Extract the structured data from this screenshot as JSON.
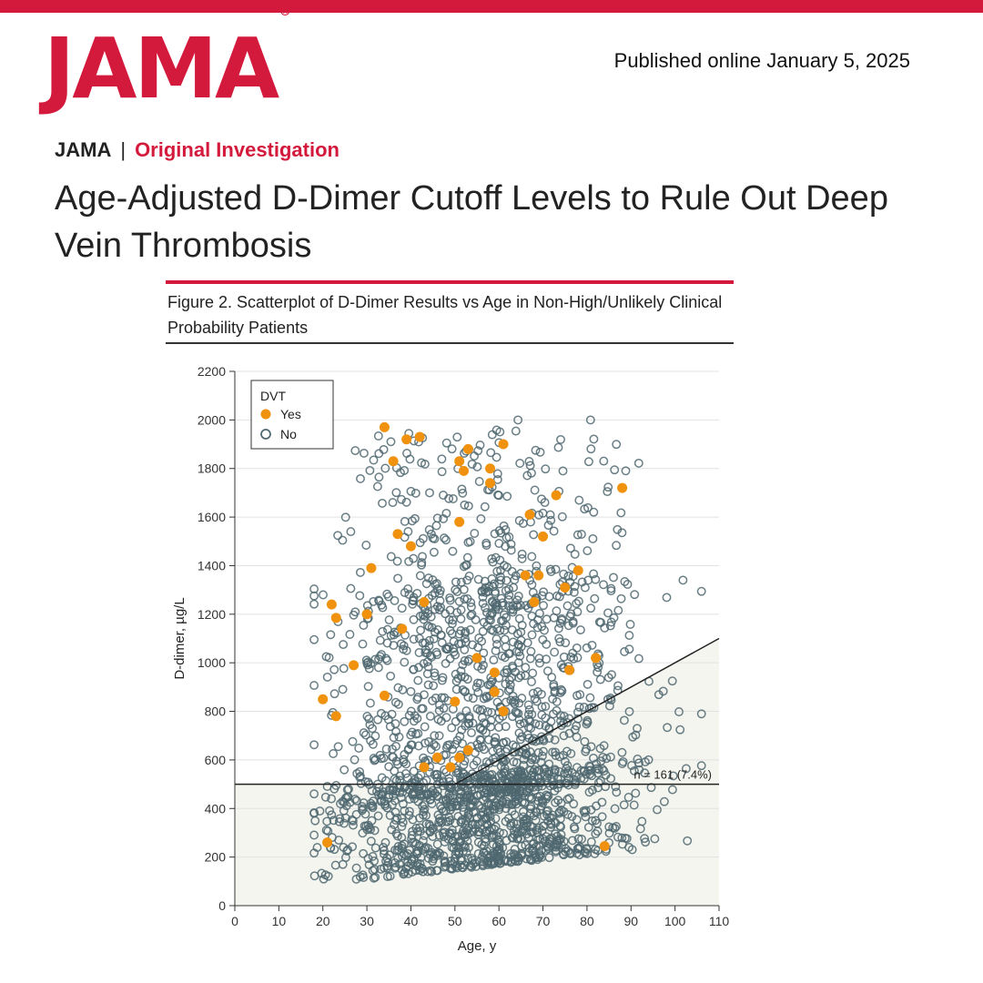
{
  "header": {
    "logo": "JAMA",
    "registered": "®",
    "published": "Published online January 5, 2025"
  },
  "article": {
    "journal": "JAMA",
    "separator": "|",
    "section": "Original Investigation",
    "title": "Age-Adjusted D-Dimer Cutoff Levels to Rule Out Deep Vein Thrombosis"
  },
  "figure": {
    "caption": "Figure 2. Scatterplot of D-Dimer Results vs Age in Non-High/Unlikely Clinical Probability Patients"
  },
  "colors": {
    "brand_red": "#d41a3c",
    "dvt_yes": "#f0920e",
    "dvt_no": "#4f6770",
    "shaded_region": "#f4f5ef"
  },
  "chart_data": {
    "type": "scatter",
    "title": "",
    "xlabel": "Age, y",
    "ylabel": "D-dimer, µg/L",
    "xlim": [
      0,
      110
    ],
    "ylim": [
      0,
      2200
    ],
    "xticks": [
      0,
      10,
      20,
      30,
      40,
      50,
      60,
      70,
      80,
      90,
      100,
      110
    ],
    "yticks": [
      0,
      200,
      400,
      600,
      800,
      1000,
      1200,
      1400,
      1600,
      1800,
      2000,
      2200
    ],
    "grid": true,
    "legend": {
      "title": "DVT",
      "position": "top-left",
      "entries": [
        "Yes",
        "No"
      ]
    },
    "reference_lines": {
      "fixed_cutoff": 500,
      "age_adjusted_rule": "age × 10 µg/L for age > 50 y",
      "age_adjusted_points": [
        [
          50,
          500
        ],
        [
          110,
          1100
        ]
      ]
    },
    "annotation": "n = 161 (7.4%)",
    "series_no_generation": {
      "approximate_count": 2100,
      "age_range": [
        18,
        106
      ],
      "ddimer_range": [
        100,
        2000
      ]
    },
    "series": [
      {
        "name": "Yes",
        "points": [
          [
            20,
            850
          ],
          [
            21,
            260
          ],
          [
            22,
            1240
          ],
          [
            23,
            1185
          ],
          [
            23,
            780
          ],
          [
            27,
            990
          ],
          [
            30,
            1200
          ],
          [
            31,
            1390
          ],
          [
            34,
            1970
          ],
          [
            34,
            865
          ],
          [
            36,
            1830
          ],
          [
            37,
            1530
          ],
          [
            38,
            1140
          ],
          [
            39,
            1920
          ],
          [
            40,
            1480
          ],
          [
            42,
            1930
          ],
          [
            43,
            1250
          ],
          [
            43,
            570
          ],
          [
            46,
            610
          ],
          [
            49,
            570
          ],
          [
            50,
            840
          ],
          [
            51,
            1830
          ],
          [
            51,
            1580
          ],
          [
            51,
            610
          ],
          [
            52,
            1790
          ],
          [
            53,
            1880
          ],
          [
            53,
            640
          ],
          [
            55,
            1020
          ],
          [
            58,
            1800
          ],
          [
            58,
            1740
          ],
          [
            59,
            960
          ],
          [
            59,
            880
          ],
          [
            61,
            1900
          ],
          [
            61,
            800
          ],
          [
            66,
            1360
          ],
          [
            67,
            1610
          ],
          [
            68,
            1250
          ],
          [
            69,
            1360
          ],
          [
            70,
            1520
          ],
          [
            73,
            1690
          ],
          [
            75,
            1310
          ],
          [
            76,
            970
          ],
          [
            78,
            1380
          ],
          [
            82,
            1020
          ],
          [
            84,
            245
          ],
          [
            88,
            1720
          ]
        ]
      }
    ]
  }
}
